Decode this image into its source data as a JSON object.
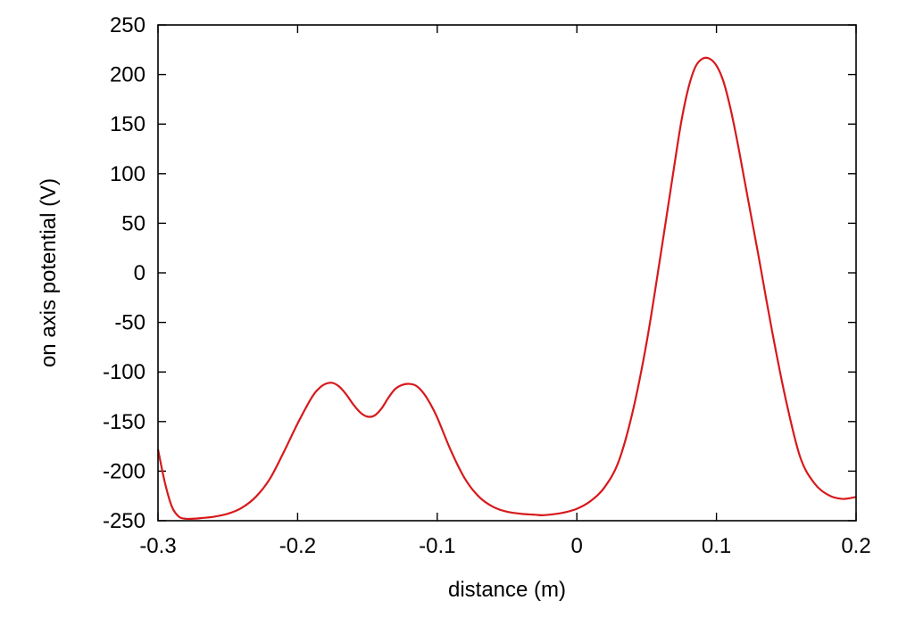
{
  "chart_data": {
    "type": "line",
    "title": "",
    "xlabel": "distance (m)",
    "ylabel": "on axis potential (V)",
    "xlim": [
      -0.3,
      0.2
    ],
    "ylim": [
      -250,
      250
    ],
    "xticks": [
      -0.3,
      -0.2,
      -0.1,
      0,
      0.1,
      0.2
    ],
    "yticks": [
      -250,
      -200,
      -150,
      -100,
      -50,
      0,
      50,
      100,
      150,
      200,
      250
    ],
    "xtick_labels": [
      "-0.3",
      "-0.2",
      "-0.1",
      "0",
      "0.1",
      "0.2"
    ],
    "ytick_labels": [
      "-250",
      "-200",
      "-150",
      "-100",
      "-50",
      "0",
      "50",
      "100",
      "150",
      "200",
      "250"
    ],
    "grid": false,
    "legend": "none",
    "series": [
      {
        "color": "#d7191c",
        "x": [
          -0.3,
          -0.295,
          -0.29,
          -0.285,
          -0.28,
          -0.275,
          -0.27,
          -0.26,
          -0.25,
          -0.24,
          -0.23,
          -0.22,
          -0.21,
          -0.2,
          -0.19,
          -0.185,
          -0.18,
          -0.175,
          -0.17,
          -0.165,
          -0.16,
          -0.155,
          -0.15,
          -0.145,
          -0.14,
          -0.135,
          -0.13,
          -0.125,
          -0.12,
          -0.115,
          -0.11,
          -0.105,
          -0.1,
          -0.09,
          -0.08,
          -0.07,
          -0.06,
          -0.05,
          -0.04,
          -0.03,
          -0.025,
          -0.02,
          -0.01,
          0,
          0.01,
          0.02,
          0.03,
          0.04,
          0.05,
          0.06,
          0.07,
          0.075,
          0.08,
          0.085,
          0.09,
          0.095,
          0.1,
          0.105,
          0.11,
          0.115,
          0.12,
          0.125,
          0.13,
          0.14,
          0.15,
          0.16,
          0.17,
          0.18,
          0.19,
          0.2
        ],
        "y": [
          -178,
          -212,
          -236,
          -246,
          -248,
          -248,
          -247.5,
          -246,
          -243,
          -237,
          -226,
          -208,
          -181,
          -152,
          -126,
          -117,
          -112,
          -111,
          -115,
          -123,
          -133,
          -141,
          -145,
          -144,
          -137,
          -126,
          -117,
          -113,
          -112,
          -114,
          -121,
          -132,
          -146,
          -180,
          -208,
          -226,
          -236,
          -241,
          -243,
          -244,
          -244.5,
          -244,
          -242,
          -238,
          -230,
          -216,
          -190,
          -140,
          -70,
          18,
          110,
          154,
          187,
          208,
          216,
          216,
          209,
          193,
          166,
          132,
          94,
          56,
          18,
          -60,
          -130,
          -186,
          -212,
          -224,
          -228,
          -226
        ]
      }
    ]
  }
}
